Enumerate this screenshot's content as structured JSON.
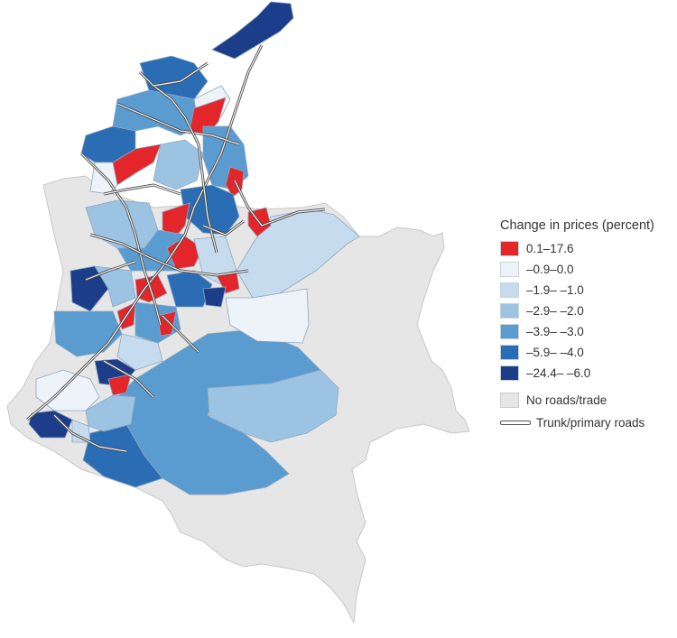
{
  "legend": {
    "title": "Change in prices (percent)",
    "classes": [
      {
        "label": "0.1–17.6",
        "color": "#e3262a"
      },
      {
        "label": "–0.9–0.0",
        "color": "#eef3f9"
      },
      {
        "label": "–1.9– –1.0",
        "color": "#c7dbee"
      },
      {
        "label": "–2.9– –2.0",
        "color": "#9dc3e3"
      },
      {
        "label": "–3.9– –3.0",
        "color": "#5a9bd0"
      },
      {
        "label": "–5.9– –4.0",
        "color": "#2b6db5"
      },
      {
        "label": "–24.4– –6.0",
        "color": "#1c3e8a"
      }
    ],
    "no_data": {
      "label": "No roads/trade",
      "color": "#e6e6e6"
    },
    "roads": {
      "label": "Trunk/primary roads"
    }
  },
  "map": {
    "region_color_ids": [
      0,
      1,
      2,
      3,
      4,
      5,
      6
    ]
  }
}
